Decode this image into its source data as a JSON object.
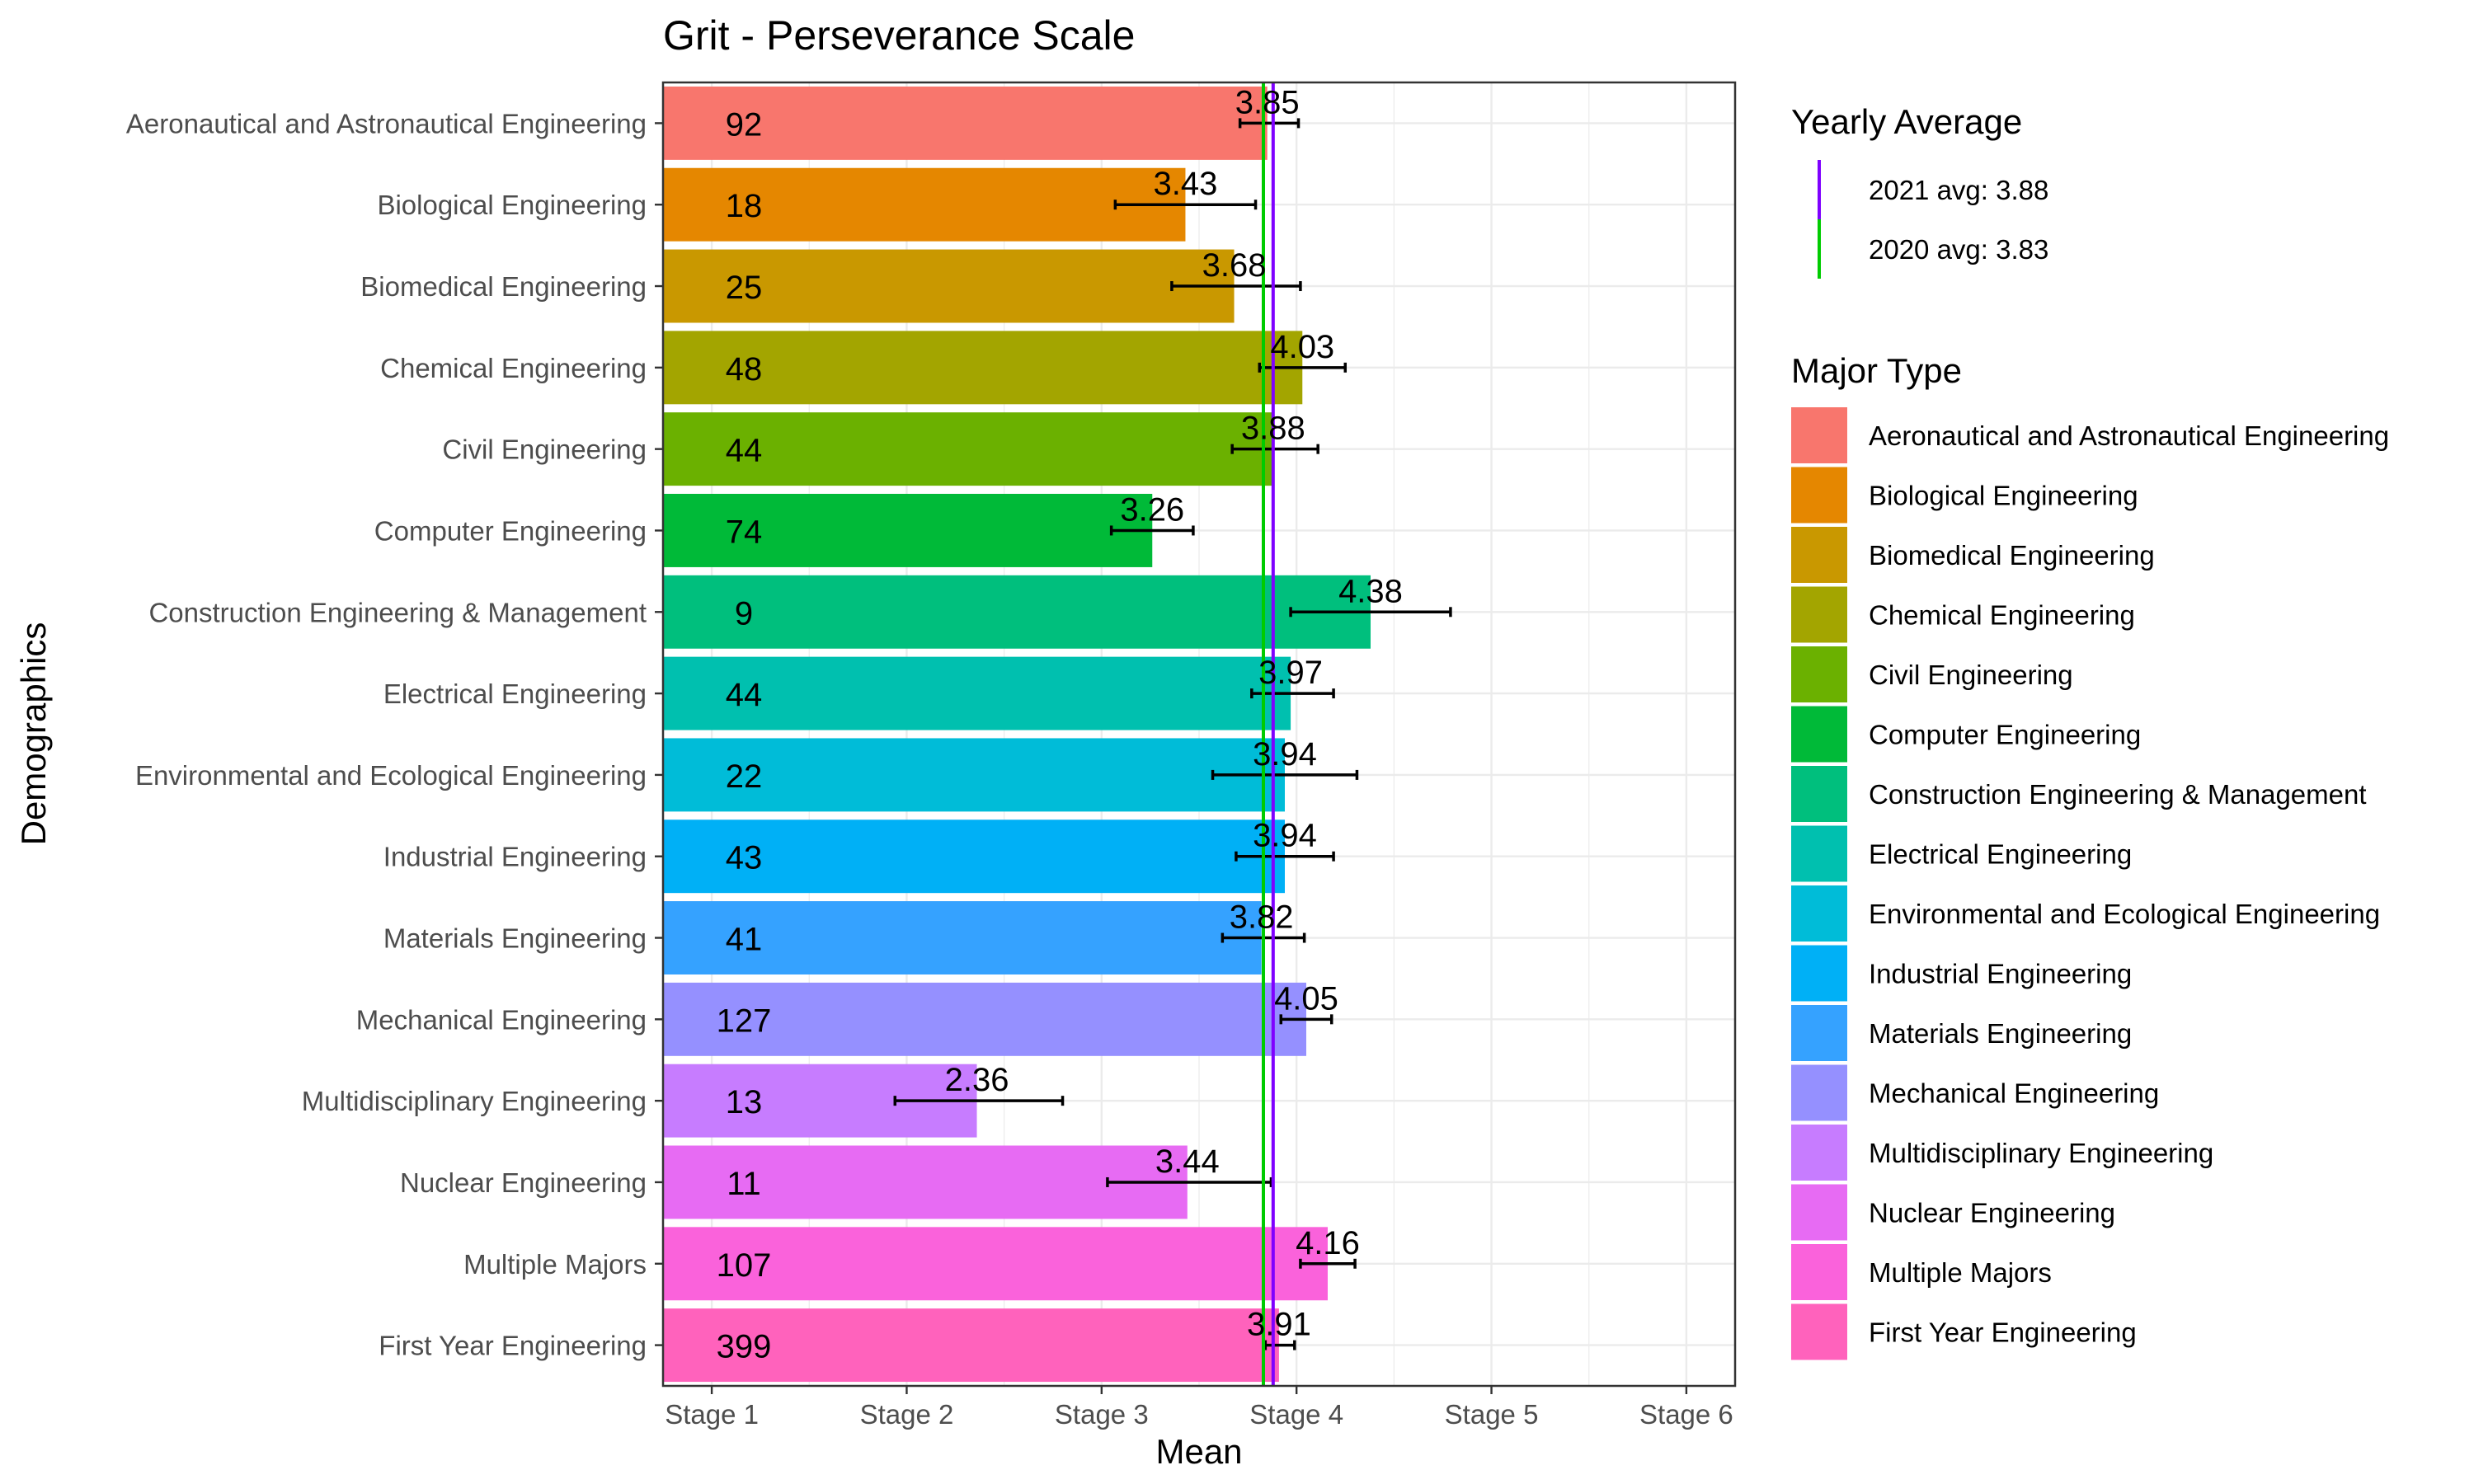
{
  "chart_data": {
    "type": "bar",
    "orientation": "horizontal",
    "title": "Grit - Perseverance Scale",
    "xlabel": "Mean",
    "ylabel": "Demographics",
    "xlim": [
      0.75,
      6.25
    ],
    "x_ticks": [
      {
        "value": 1,
        "label": "Stage 1"
      },
      {
        "value": 2,
        "label": "Stage 2"
      },
      {
        "value": 3,
        "label": "Stage 3"
      },
      {
        "value": 4,
        "label": "Stage 4"
      },
      {
        "value": 5,
        "label": "Stage 5"
      },
      {
        "value": 6,
        "label": "Stage 6"
      }
    ],
    "grid": true,
    "bars": [
      {
        "category": "Aeronautical and Astronautical Engineering",
        "mean": 3.85,
        "mean_label": "3.85",
        "n": "92",
        "err_low": 3.71,
        "err_high": 4.01,
        "color": "#F8766D"
      },
      {
        "category": "Biological Engineering",
        "mean": 3.43,
        "mean_label": "3.43",
        "n": "18",
        "err_low": 3.07,
        "err_high": 3.79,
        "color": "#E58700"
      },
      {
        "category": "Biomedical Engineering",
        "mean": 3.68,
        "mean_label": "3.68",
        "n": "25",
        "err_low": 3.36,
        "err_high": 4.02,
        "color": "#C99800"
      },
      {
        "category": "Chemical Engineering",
        "mean": 4.03,
        "mean_label": "4.03",
        "n": "48",
        "err_low": 3.81,
        "err_high": 4.25,
        "color": "#A3A500"
      },
      {
        "category": "Civil Engineering",
        "mean": 3.88,
        "mean_label": "3.88",
        "n": "44",
        "err_low": 3.67,
        "err_high": 4.11,
        "color": "#6BB100"
      },
      {
        "category": "Computer Engineering",
        "mean": 3.26,
        "mean_label": "3.26",
        "n": "74",
        "err_low": 3.05,
        "err_high": 3.47,
        "color": "#00BA38"
      },
      {
        "category": "Construction Engineering & Management",
        "mean": 4.38,
        "mean_label": "4.38",
        "n": "9",
        "err_low": 3.97,
        "err_high": 4.79,
        "color": "#00BF7D"
      },
      {
        "category": "Electrical Engineering",
        "mean": 3.97,
        "mean_label": "3.97",
        "n": "44",
        "err_low": 3.77,
        "err_high": 4.19,
        "color": "#00C0AF"
      },
      {
        "category": "Environmental and Ecological Engineering",
        "mean": 3.94,
        "mean_label": "3.94",
        "n": "22",
        "err_low": 3.57,
        "err_high": 4.31,
        "color": "#00BCD8"
      },
      {
        "category": "Industrial Engineering",
        "mean": 3.94,
        "mean_label": "3.94",
        "n": "43",
        "err_low": 3.69,
        "err_high": 4.19,
        "color": "#00B0F6"
      },
      {
        "category": "Materials Engineering",
        "mean": 3.82,
        "mean_label": "3.82",
        "n": "41",
        "err_low": 3.62,
        "err_high": 4.04,
        "color": "#35A2FF"
      },
      {
        "category": "Mechanical Engineering",
        "mean": 4.05,
        "mean_label": "4.05",
        "n": "127",
        "err_low": 3.92,
        "err_high": 4.18,
        "color": "#9590FF"
      },
      {
        "category": "Multidisciplinary Engineering",
        "mean": 2.36,
        "mean_label": "2.36",
        "n": "13",
        "err_low": 1.94,
        "err_high": 2.8,
        "color": "#C77CFF"
      },
      {
        "category": "Nuclear Engineering",
        "mean": 3.44,
        "mean_label": "3.44",
        "n": "11",
        "err_low": 3.03,
        "err_high": 3.87,
        "color": "#E76BF3"
      },
      {
        "category": "Multiple Majors",
        "mean": 4.16,
        "mean_label": "4.16",
        "n": "107",
        "err_low": 4.02,
        "err_high": 4.3,
        "color": "#FA62DB"
      },
      {
        "category": "First Year Engineering",
        "mean": 3.91,
        "mean_label": "3.91",
        "n": "399",
        "err_low": 3.84,
        "err_high": 3.99,
        "color": "#FF62BC"
      }
    ],
    "reference_lines": [
      {
        "label": "2021 avg: 3.88",
        "value": 3.88,
        "color": "#7F00FF"
      },
      {
        "label": "2020 avg: 3.83",
        "value": 3.83,
        "color": "#00CC00"
      }
    ],
    "legend_reference_title": "Yearly Average",
    "legend_fill_title": "Major Type",
    "legend_placement": "right"
  }
}
